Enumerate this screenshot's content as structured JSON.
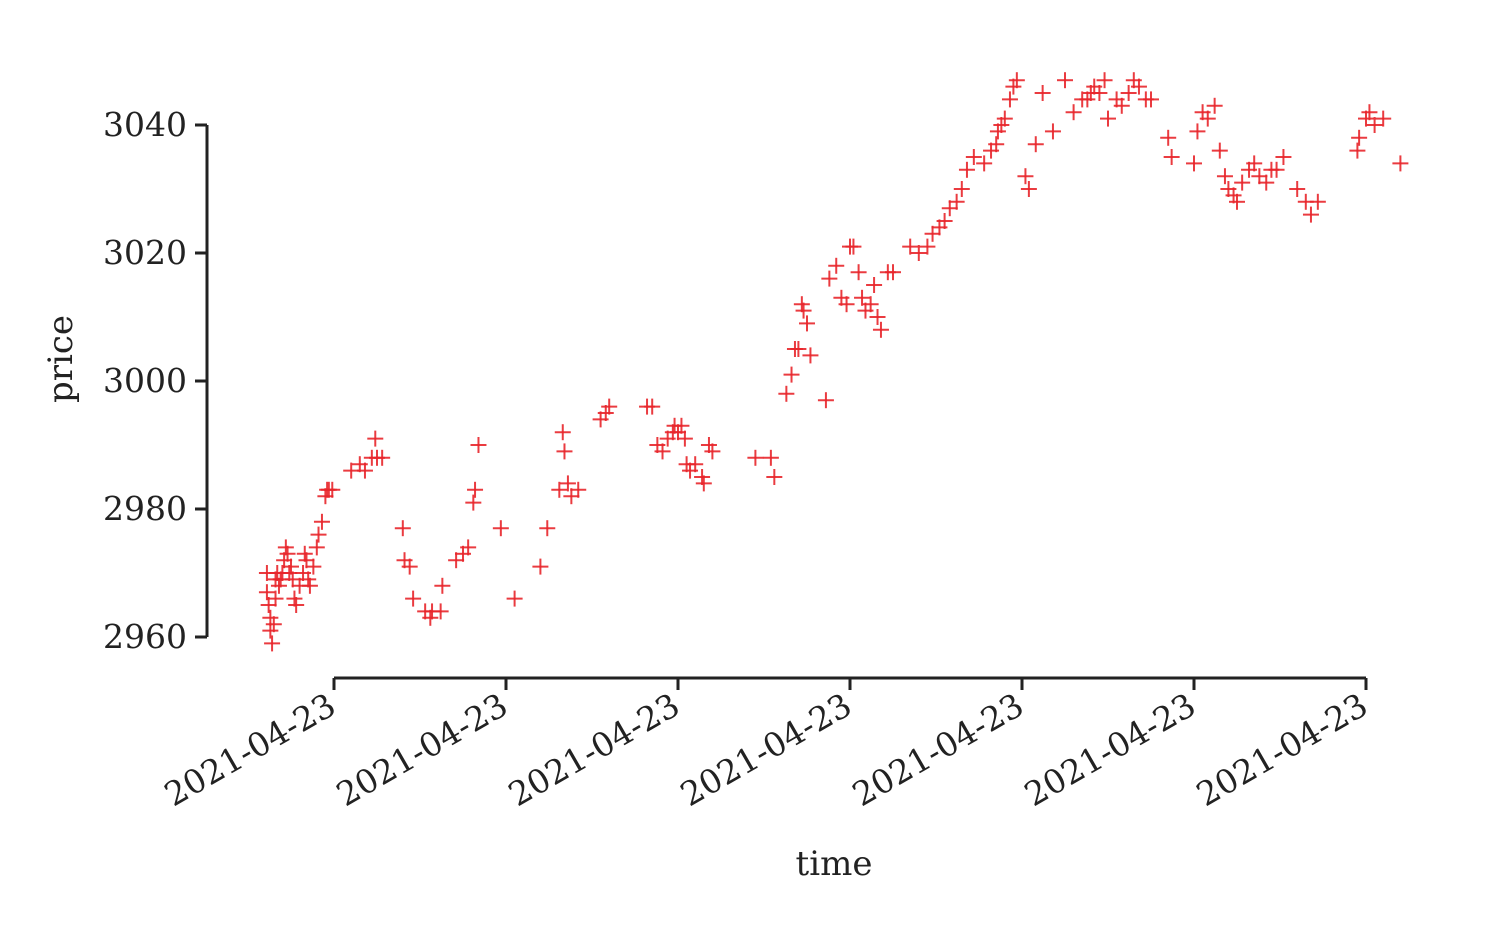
{
  "chart_data": {
    "type": "scatter",
    "title": "",
    "xlabel": "time",
    "ylabel": "price",
    "marker": "+",
    "color": "#e8262b",
    "grid": false,
    "legend": "none",
    "xlim": [
      -0.36,
      6.2
    ],
    "ylim": [
      2954,
      3050
    ],
    "x_ticks": [
      0,
      1,
      2,
      3,
      4,
      5,
      6
    ],
    "x_tick_labels": [
      "2021-04-23",
      "2021-04-23",
      "2021-04-23",
      "2021-04-23",
      "2021-04-23",
      "2021-04-23",
      "2021-04-23"
    ],
    "y_ticks": [
      2960,
      2980,
      3000,
      3020,
      3040
    ],
    "y_tick_labels": [
      "2960",
      "2980",
      "3000",
      "3020",
      "3040"
    ],
    "points": [
      [
        -0.39,
        2970
      ],
      [
        -0.39,
        2967
      ],
      [
        -0.38,
        2965
      ],
      [
        -0.37,
        2963
      ],
      [
        -0.37,
        2961
      ],
      [
        -0.36,
        2959
      ],
      [
        -0.35,
        2962
      ],
      [
        -0.34,
        2966
      ],
      [
        -0.34,
        2969
      ],
      [
        -0.33,
        2970
      ],
      [
        -0.32,
        2968
      ],
      [
        -0.31,
        2969
      ],
      [
        -0.3,
        2970
      ],
      [
        -0.29,
        2972
      ],
      [
        -0.28,
        2974
      ],
      [
        -0.27,
        2973
      ],
      [
        -0.26,
        2970
      ],
      [
        -0.25,
        2971
      ],
      [
        -0.24,
        2969
      ],
      [
        -0.23,
        2966
      ],
      [
        -0.22,
        2965
      ],
      [
        -0.2,
        2968
      ],
      [
        -0.18,
        2970
      ],
      [
        -0.17,
        2973
      ],
      [
        -0.16,
        2972
      ],
      [
        -0.15,
        2969
      ],
      [
        -0.14,
        2968
      ],
      [
        -0.12,
        2971
      ],
      [
        -0.1,
        2974
      ],
      [
        -0.09,
        2976
      ],
      [
        -0.07,
        2978
      ],
      [
        -0.05,
        2982
      ],
      [
        -0.04,
        2983
      ],
      [
        -0.03,
        2983
      ],
      [
        -0.01,
        2983
      ],
      [
        0.1,
        2986
      ],
      [
        0.15,
        2987
      ],
      [
        0.18,
        2986
      ],
      [
        0.22,
        2988
      ],
      [
        0.25,
        2988
      ],
      [
        0.28,
        2988
      ],
      [
        0.24,
        2991
      ],
      [
        0.4,
        2977
      ],
      [
        0.41,
        2972
      ],
      [
        0.44,
        2971
      ],
      [
        0.46,
        2966
      ],
      [
        0.53,
        2964
      ],
      [
        0.56,
        2963
      ],
      [
        0.57,
        2964
      ],
      [
        0.62,
        2964
      ],
      [
        0.63,
        2968
      ],
      [
        0.71,
        2972
      ],
      [
        0.75,
        2973
      ],
      [
        0.78,
        2974
      ],
      [
        0.81,
        2981
      ],
      [
        0.82,
        2983
      ],
      [
        0.84,
        2990
      ],
      [
        0.97,
        2977
      ],
      [
        1.05,
        2966
      ],
      [
        1.2,
        2971
      ],
      [
        1.24,
        2977
      ],
      [
        1.31,
        2983
      ],
      [
        1.33,
        2992
      ],
      [
        1.34,
        2989
      ],
      [
        1.36,
        2984
      ],
      [
        1.38,
        2982
      ],
      [
        1.42,
        2983
      ],
      [
        1.55,
        2994
      ],
      [
        1.58,
        2995
      ],
      [
        1.6,
        2996
      ],
      [
        1.82,
        2996
      ],
      [
        1.85,
        2996
      ],
      [
        1.88,
        2990
      ],
      [
        1.91,
        2989
      ],
      [
        1.94,
        2991
      ],
      [
        1.97,
        2992
      ],
      [
        1.98,
        2993
      ],
      [
        2.0,
        2992
      ],
      [
        2.02,
        2993
      ],
      [
        2.04,
        2991
      ],
      [
        2.05,
        2987
      ],
      [
        2.07,
        2986
      ],
      [
        2.1,
        2987
      ],
      [
        2.14,
        2985
      ],
      [
        2.15,
        2984
      ],
      [
        2.18,
        2990
      ],
      [
        2.2,
        2989
      ],
      [
        2.45,
        2988
      ],
      [
        2.54,
        2988
      ],
      [
        2.56,
        2985
      ],
      [
        2.63,
        2998
      ],
      [
        2.66,
        3001
      ],
      [
        2.68,
        3005
      ],
      [
        2.7,
        3005
      ],
      [
        2.72,
        3012
      ],
      [
        2.73,
        3011
      ],
      [
        2.75,
        3009
      ],
      [
        2.77,
        3004
      ],
      [
        2.86,
        2997
      ],
      [
        2.88,
        3016
      ],
      [
        2.92,
        3018
      ],
      [
        2.95,
        3013
      ],
      [
        2.98,
        3012
      ],
      [
        3.0,
        3021
      ],
      [
        3.02,
        3021
      ],
      [
        3.05,
        3017
      ],
      [
        3.07,
        3013
      ],
      [
        3.09,
        3011
      ],
      [
        3.12,
        3012
      ],
      [
        3.14,
        3015
      ],
      [
        3.16,
        3010
      ],
      [
        3.18,
        3008
      ],
      [
        3.22,
        3017
      ],
      [
        3.25,
        3017
      ],
      [
        3.35,
        3021
      ],
      [
        3.4,
        3020
      ],
      [
        3.45,
        3021
      ],
      [
        3.48,
        3023
      ],
      [
        3.52,
        3024
      ],
      [
        3.55,
        3025
      ],
      [
        3.58,
        3027
      ],
      [
        3.62,
        3028
      ],
      [
        3.65,
        3030
      ],
      [
        3.68,
        3033
      ],
      [
        3.72,
        3035
      ],
      [
        3.78,
        3034
      ],
      [
        3.82,
        3036
      ],
      [
        3.85,
        3037
      ],
      [
        3.86,
        3039
      ],
      [
        3.88,
        3040
      ],
      [
        3.9,
        3041
      ],
      [
        3.93,
        3044
      ],
      [
        3.95,
        3046
      ],
      [
        3.97,
        3047
      ],
      [
        4.02,
        3032
      ],
      [
        4.04,
        3030
      ],
      [
        4.08,
        3037
      ],
      [
        4.12,
        3045
      ],
      [
        4.18,
        3039
      ],
      [
        4.25,
        3047
      ],
      [
        4.3,
        3042
      ],
      [
        4.35,
        3044
      ],
      [
        4.38,
        3044
      ],
      [
        4.4,
        3045
      ],
      [
        4.42,
        3046
      ],
      [
        4.45,
        3045
      ],
      [
        4.48,
        3047
      ],
      [
        4.5,
        3041
      ],
      [
        4.55,
        3044
      ],
      [
        4.58,
        3043
      ],
      [
        4.62,
        3045
      ],
      [
        4.65,
        3047
      ],
      [
        4.68,
        3046
      ],
      [
        4.72,
        3044
      ],
      [
        4.75,
        3044
      ],
      [
        4.85,
        3038
      ],
      [
        4.87,
        3035
      ],
      [
        5.0,
        3034
      ],
      [
        5.02,
        3039
      ],
      [
        5.05,
        3042
      ],
      [
        5.08,
        3041
      ],
      [
        5.12,
        3043
      ],
      [
        5.15,
        3036
      ],
      [
        5.18,
        3032
      ],
      [
        5.2,
        3030
      ],
      [
        5.23,
        3029
      ],
      [
        5.25,
        3028
      ],
      [
        5.28,
        3031
      ],
      [
        5.32,
        3033
      ],
      [
        5.35,
        3034
      ],
      [
        5.38,
        3032
      ],
      [
        5.42,
        3031
      ],
      [
        5.45,
        3033
      ],
      [
        5.48,
        3033
      ],
      [
        5.52,
        3035
      ],
      [
        5.6,
        3030
      ],
      [
        5.65,
        3028
      ],
      [
        5.68,
        3026
      ],
      [
        5.72,
        3028
      ],
      [
        5.95,
        3036
      ],
      [
        5.96,
        3038
      ],
      [
        6.0,
        3041
      ],
      [
        6.02,
        3042
      ],
      [
        6.05,
        3040
      ],
      [
        6.1,
        3041
      ],
      [
        6.2,
        3034
      ]
    ]
  }
}
